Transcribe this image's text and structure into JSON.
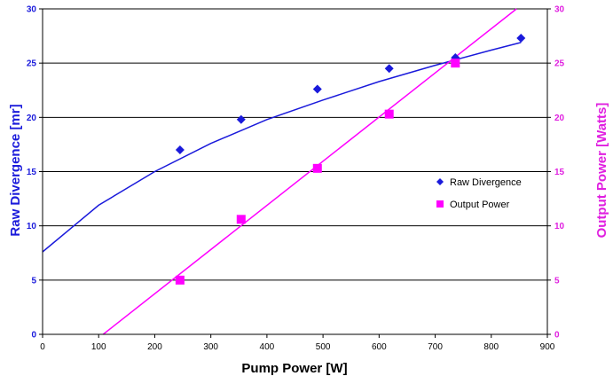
{
  "chart_data": {
    "type": "scatter",
    "xlabel": "Pump Power [W]",
    "ylabel": "Raw Divergence [mr]",
    "y2label": "Output Power [Watts]",
    "xlim": [
      0,
      900
    ],
    "ylim": [
      0,
      30
    ],
    "y2lim": [
      0,
      30
    ],
    "x_ticks": [
      "0",
      "100",
      "200",
      "300",
      "400",
      "500",
      "600",
      "700",
      "800",
      "900"
    ],
    "y_ticks": [
      "0",
      "5",
      "10",
      "15",
      "20",
      "25",
      "30"
    ],
    "y2_ticks": [
      "0",
      "5",
      "10",
      "15",
      "20",
      "25",
      "30"
    ],
    "grid": "horizontal",
    "legend_position": "right",
    "series": [
      {
        "name": "Raw Divergence",
        "axis": "left",
        "marker": "diamond",
        "color": "#1a1adb",
        "x": [
          245,
          354,
          490,
          618,
          736,
          853
        ],
        "y": [
          17.0,
          19.8,
          22.6,
          24.5,
          25.5,
          27.3
        ],
        "trend": "power",
        "trend_curve_x": [
          0,
          100,
          200,
          300,
          400,
          500,
          600,
          700,
          800,
          853
        ],
        "trend_curve_y": [
          7.6,
          11.9,
          15.0,
          17.6,
          19.8,
          21.6,
          23.3,
          24.8,
          26.2,
          26.9
        ]
      },
      {
        "name": "Output Power",
        "axis": "right",
        "marker": "square",
        "color": "#ff00ff",
        "x": [
          245,
          354,
          490,
          618,
          736
        ],
        "y": [
          5.0,
          10.6,
          15.3,
          20.3,
          25.0
        ],
        "trend": "linear",
        "trend_line_x": [
          108,
          845
        ],
        "trend_line_y": [
          0,
          30
        ]
      }
    ]
  }
}
